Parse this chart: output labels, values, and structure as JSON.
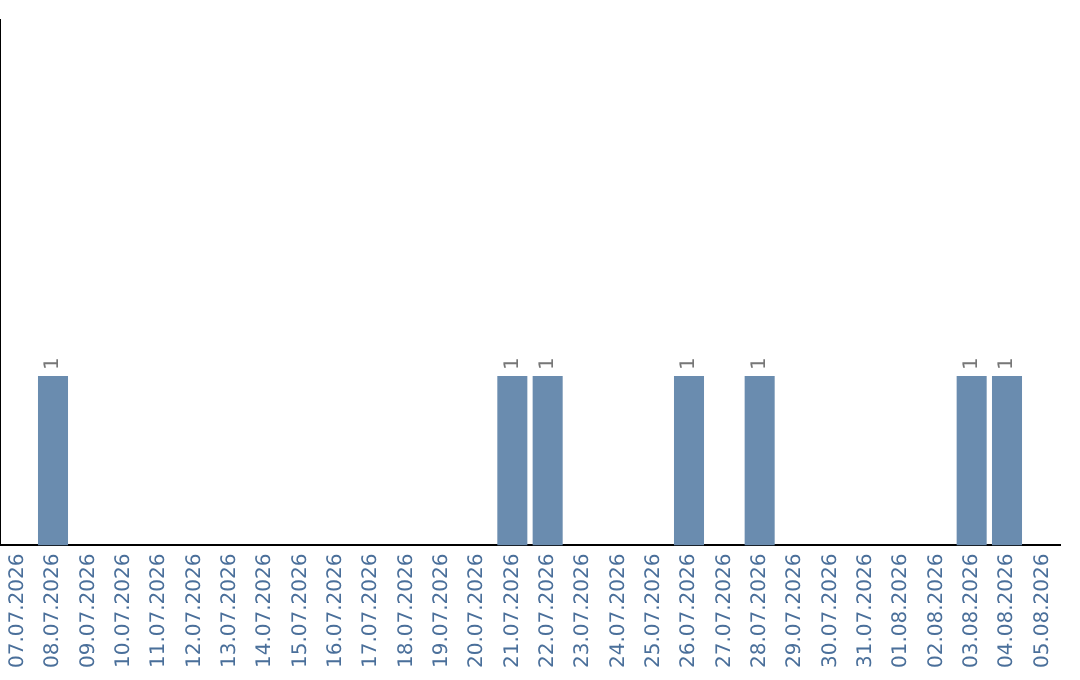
{
  "chart_data": {
    "type": "bar",
    "categories": [
      "07.07.2026",
      "08.07.2026",
      "09.07.2026",
      "10.07.2026",
      "11.07.2026",
      "12.07.2026",
      "13.07.2026",
      "14.07.2026",
      "15.07.2026",
      "16.07.2026",
      "17.07.2026",
      "18.07.2026",
      "19.07.2026",
      "20.07.2026",
      "21.07.2026",
      "22.07.2026",
      "23.07.2026",
      "24.07.2026",
      "25.07.2026",
      "26.07.2026",
      "27.07.2026",
      "28.07.2026",
      "29.07.2026",
      "30.07.2026",
      "31.07.2026",
      "01.08.2026",
      "02.08.2026",
      "03.08.2026",
      "04.08.2026",
      "05.08.2026"
    ],
    "values": [
      0,
      1,
      0,
      0,
      0,
      0,
      0,
      0,
      0,
      0,
      0,
      0,
      0,
      0,
      1,
      1,
      0,
      0,
      0,
      1,
      0,
      1,
      0,
      0,
      0,
      0,
      0,
      1,
      1,
      0
    ],
    "value_labels": [
      null,
      "1",
      null,
      null,
      null,
      null,
      null,
      null,
      null,
      null,
      null,
      null,
      null,
      null,
      "1",
      "1",
      null,
      null,
      null,
      "1",
      null,
      "1",
      null,
      null,
      null,
      null,
      null,
      "1",
      "1",
      null
    ],
    "color": "#6a8caf",
    "ylim": [
      0,
      3.1
    ],
    "tick_labels": "x",
    "grid": false,
    "legend": false
  }
}
